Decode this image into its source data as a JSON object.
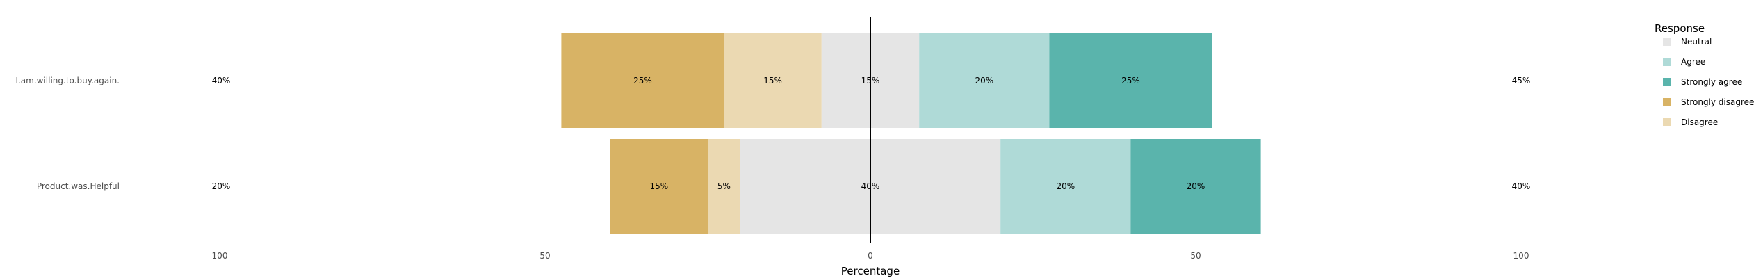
{
  "chart_data": {
    "type": "bar",
    "subtype": "diverging-stacked-likert",
    "title": "",
    "xlabel": "Percentage",
    "ylabel": "",
    "xlim": [
      -100,
      100
    ],
    "x_ticks": [
      {
        "value": -100,
        "label": "100"
      },
      {
        "value": -50,
        "label": "50"
      },
      {
        "value": 0,
        "label": "0"
      },
      {
        "value": 50,
        "label": "50"
      },
      {
        "value": 100,
        "label": "100"
      }
    ],
    "grid": false,
    "legend": {
      "title": "Response",
      "position": "right",
      "entries": [
        {
          "name": "Neutral",
          "color": "#e5e5e5"
        },
        {
          "name": "Agree",
          "color": "#afdad7"
        },
        {
          "name": "Strongly agree",
          "color": "#5ab4ac"
        },
        {
          "name": "Strongly disagree",
          "color": "#d8b365"
        },
        {
          "name": "Disagree",
          "color": "#ebd9b2"
        }
      ]
    },
    "categories": [
      "I.am.willing.to.buy.again.",
      "Product.was.Helpful"
    ],
    "stack_order": [
      "Strongly disagree",
      "Disagree",
      "Neutral",
      "Agree",
      "Strongly agree"
    ],
    "series": [
      {
        "name": "Strongly disagree",
        "color": "#d8b365",
        "values": [
          25,
          15
        ],
        "labels": [
          "25%",
          "15%"
        ]
      },
      {
        "name": "Disagree",
        "color": "#ebd9b2",
        "values": [
          15,
          5
        ],
        "labels": [
          "15%",
          "5%"
        ]
      },
      {
        "name": "Neutral",
        "color": "#e5e5e5",
        "values": [
          15,
          40
        ],
        "labels": [
          "15%",
          "40%"
        ]
      },
      {
        "name": "Agree",
        "color": "#afdad7",
        "values": [
          20,
          20
        ],
        "labels": [
          "20%",
          "20%"
        ]
      },
      {
        "name": "Strongly agree",
        "color": "#5ab4ac",
        "values": [
          25,
          20
        ],
        "labels": [
          "25%",
          "20%"
        ]
      }
    ],
    "left_totals": [
      "40%",
      "20%"
    ],
    "right_totals": [
      "45%",
      "40%"
    ]
  }
}
